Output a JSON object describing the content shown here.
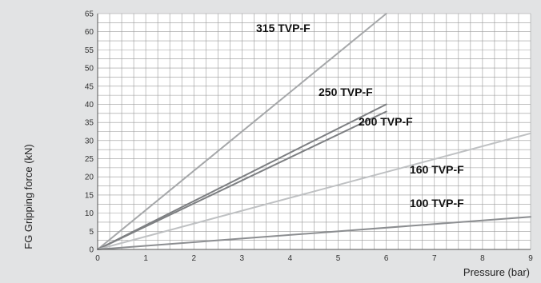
{
  "chart_data": {
    "type": "line",
    "title": "",
    "xlabel": "Pressure (bar)",
    "ylabel": "FG Gripping force (kN)",
    "xlim": [
      0,
      9
    ],
    "ylim": [
      0,
      65
    ],
    "x_ticks": [
      "0",
      "1",
      "2",
      "3",
      "4",
      "5",
      "6",
      "7",
      "8",
      "9"
    ],
    "y_ticks": [
      "0",
      "5",
      "10",
      "15",
      "20",
      "25",
      "30",
      "35",
      "40",
      "45",
      "50",
      "55",
      "60",
      "65"
    ],
    "grid": true,
    "legend": "none",
    "series": [
      {
        "name": "315 TVP-F",
        "x": [
          0,
          6
        ],
        "y": [
          0,
          65
        ],
        "color": "#a6a8aa"
      },
      {
        "name": "250 TVP-F",
        "x": [
          0,
          6
        ],
        "y": [
          0,
          40
        ],
        "color": "#7e8083"
      },
      {
        "name": "200 TVP-F",
        "x": [
          0,
          6
        ],
        "y": [
          0,
          38
        ],
        "color": "#7e8083"
      },
      {
        "name": "160 TVP-F",
        "x": [
          0,
          9
        ],
        "y": [
          0,
          32
        ],
        "color": "#bfc1c3"
      },
      {
        "name": "100 TVP-F",
        "x": [
          0,
          9
        ],
        "y": [
          0,
          9
        ],
        "color": "#8c8e91"
      }
    ]
  },
  "colors": {
    "background": "#e2e3e4",
    "plot_background": "#ffffff",
    "grid": "#9a9a9a"
  }
}
